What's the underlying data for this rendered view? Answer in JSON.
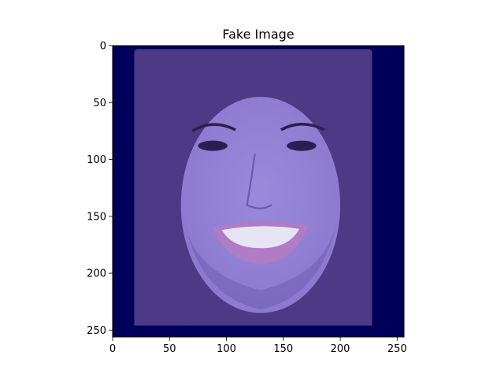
{
  "chart_data": {
    "type": "image",
    "title": "Fake Image",
    "xlabel": "",
    "ylabel": "",
    "image_size": [
      256,
      256
    ],
    "xlim": [
      0,
      256
    ],
    "ylim": [
      256,
      0
    ],
    "xticks": [
      0,
      50,
      100,
      150,
      200,
      250
    ],
    "yticks": [
      0,
      50,
      100,
      150,
      200,
      250
    ],
    "xtick_labels": [
      "0",
      "50",
      "100",
      "150",
      "200",
      "250"
    ],
    "ytick_labels": [
      "0",
      "50",
      "100",
      "150",
      "200",
      "250"
    ],
    "image_content": {
      "background_color": "#00005a",
      "face_region": {
        "x": [
          19,
          228
        ],
        "y": [
          3,
          246
        ]
      },
      "description": "smiling woman with long brown hair, blue-purple tint"
    }
  },
  "colors": {
    "frame": "#000000",
    "background": "#00005a",
    "hair": "#4d3a86",
    "skin": "#8a78cf",
    "skin_light": "#9b89db",
    "lips": "#b07cc4",
    "teeth": "#e6e4f5",
    "eyes": "#2a1f52",
    "shadow": "#6a5bb0"
  }
}
